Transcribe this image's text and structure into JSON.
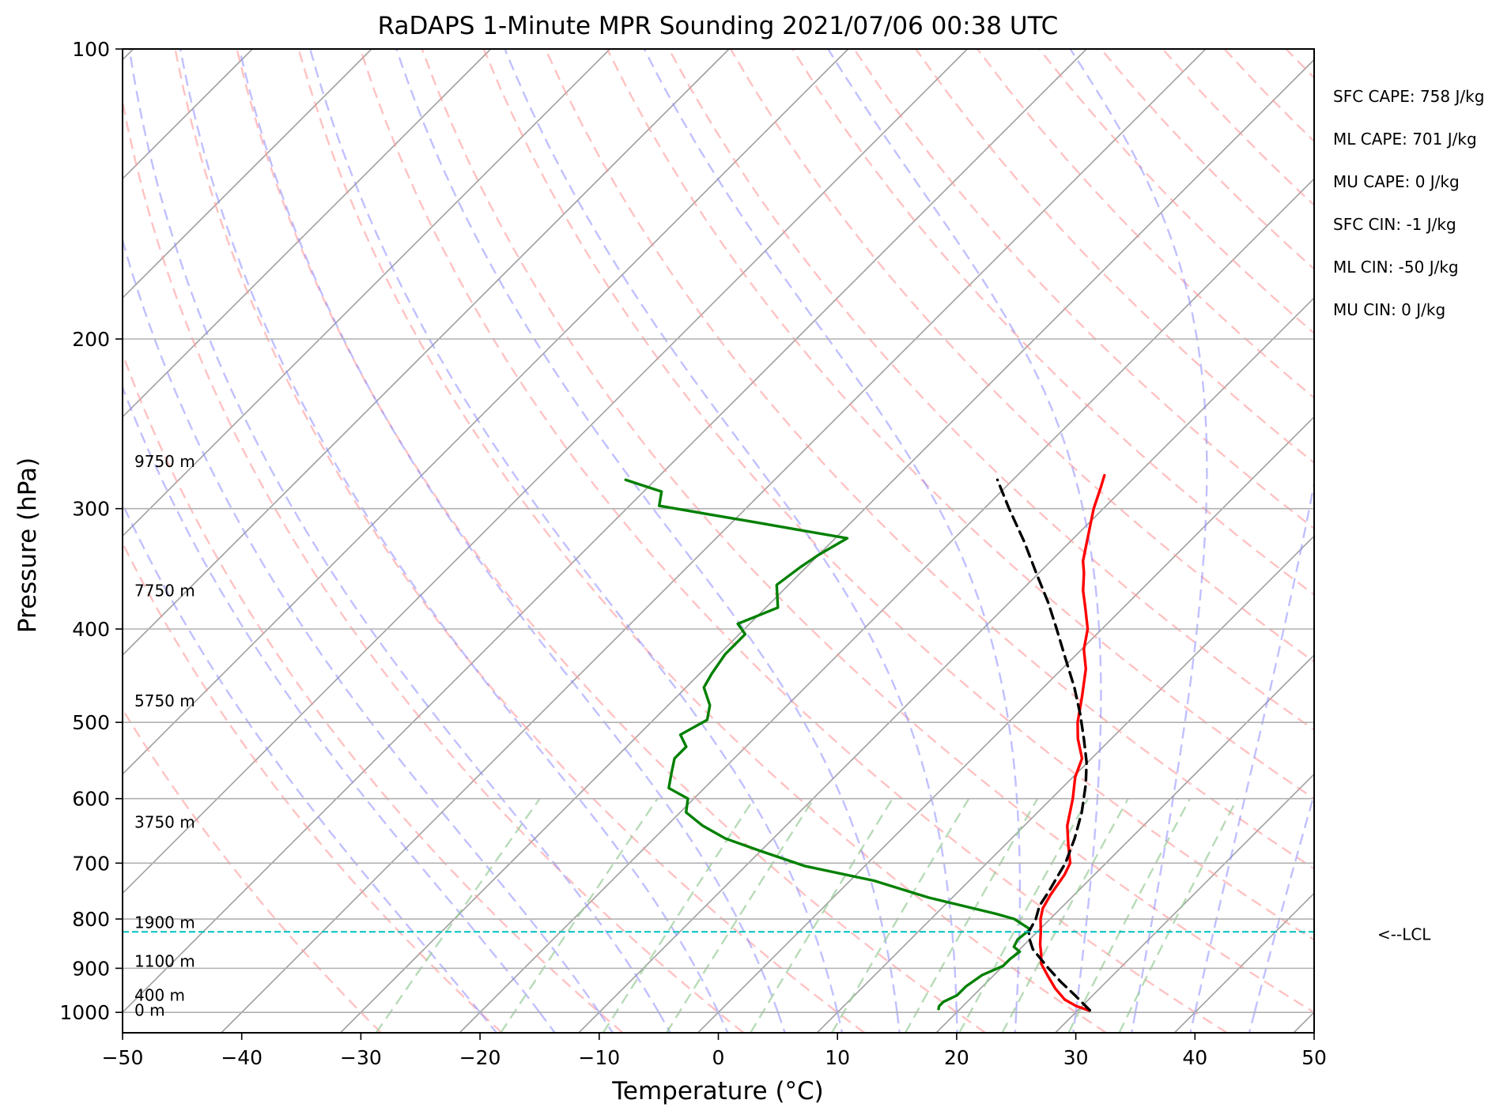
{
  "chart_data": {
    "type": "line",
    "subtype": "skew-t log-p",
    "title": "RaDAPS 1-Minute MPR Sounding 2021/07/06 00:38 UTC",
    "xlabel": "Temperature (°C)",
    "ylabel": "Pressure (hPa)",
    "xlim": [
      -50,
      50
    ],
    "ylim": [
      1050,
      100
    ],
    "y_scale": "log",
    "x_ticks": [
      -50,
      -40,
      -30,
      -20,
      -10,
      0,
      10,
      20,
      30,
      40,
      50
    ],
    "x_tick_labels": [
      "−50",
      "−40",
      "−30",
      "−20",
      "−10",
      "0",
      "10",
      "20",
      "30",
      "40",
      "50"
    ],
    "y_ticks": [
      1000,
      900,
      800,
      700,
      600,
      500,
      400,
      300,
      200,
      100
    ],
    "y_tick_labels": [
      "1000",
      "900",
      "800",
      "700",
      "600",
      "500",
      "400",
      "300",
      "200",
      "100"
    ],
    "grid": true,
    "series": [
      {
        "role": "temperature",
        "color": "#ff0000",
        "points": [
          [
            996,
            31.0
          ],
          [
            985,
            29.5
          ],
          [
            970,
            28.0
          ],
          [
            945,
            26.3
          ],
          [
            915,
            24.5
          ],
          [
            890,
            23.0
          ],
          [
            870,
            22.2
          ],
          [
            850,
            21.3
          ],
          [
            825,
            20.3
          ],
          [
            800,
            19.2
          ],
          [
            780,
            18.5
          ],
          [
            755,
            18.0
          ],
          [
            720,
            17.5
          ],
          [
            700,
            17.0
          ],
          [
            670,
            15.3
          ],
          [
            640,
            13.6
          ],
          [
            600,
            11.8
          ],
          [
            570,
            10.2
          ],
          [
            545,
            9.2
          ],
          [
            520,
            7.2
          ],
          [
            500,
            5.8
          ],
          [
            470,
            4.0
          ],
          [
            440,
            2.0
          ],
          [
            420,
            0.2
          ],
          [
            400,
            -1.2
          ],
          [
            380,
            -3.2
          ],
          [
            365,
            -4.8
          ],
          [
            350,
            -6.2
          ],
          [
            340,
            -7.3
          ],
          [
            320,
            -9.0
          ],
          [
            300,
            -10.8
          ],
          [
            285,
            -12.0
          ],
          [
            277,
            -12.7
          ]
        ]
      },
      {
        "role": "dewpoint",
        "color": "#008000",
        "points": [
          [
            992,
            18.2
          ],
          [
            985,
            18.0
          ],
          [
            975,
            18.0
          ],
          [
            960,
            18.6
          ],
          [
            940,
            18.6
          ],
          [
            915,
            19.0
          ],
          [
            895,
            20.0
          ],
          [
            880,
            20.0
          ],
          [
            865,
            20.2
          ],
          [
            855,
            19.3
          ],
          [
            840,
            19.0
          ],
          [
            820,
            19.2
          ],
          [
            800,
            17.0
          ],
          [
            790,
            15.0
          ],
          [
            760,
            8.0
          ],
          [
            730,
            2.0
          ],
          [
            705,
            -5.0
          ],
          [
            680,
            -10.0
          ],
          [
            660,
            -14.0
          ],
          [
            640,
            -17.0
          ],
          [
            620,
            -19.5
          ],
          [
            600,
            -20.5
          ],
          [
            585,
            -23.0
          ],
          [
            565,
            -24.0
          ],
          [
            545,
            -25.0
          ],
          [
            530,
            -25.0
          ],
          [
            515,
            -26.5
          ],
          [
            497,
            -25.5
          ],
          [
            480,
            -26.5
          ],
          [
            460,
            -28.5
          ],
          [
            445,
            -29.0
          ],
          [
            425,
            -29.5
          ],
          [
            405,
            -29.5
          ],
          [
            395,
            -31.0
          ],
          [
            380,
            -29.0
          ],
          [
            360,
            -31.0
          ],
          [
            345,
            -30.5
          ],
          [
            335,
            -30.0
          ],
          [
            322,
            -29.0
          ],
          [
            310,
            -38.0
          ],
          [
            298,
            -47.5
          ],
          [
            288,
            -48.5
          ],
          [
            280,
            -52.5
          ]
        ]
      },
      {
        "role": "parcel-profile",
        "color": "#000000",
        "points": [
          [
            995,
            31.0
          ],
          [
            960,
            28.5
          ],
          [
            930,
            26.2
          ],
          [
            900,
            24.0
          ],
          [
            875,
            22.2
          ],
          [
            860,
            21.1
          ],
          [
            840,
            20.0
          ],
          [
            825,
            19.3
          ],
          [
            800,
            18.8
          ],
          [
            775,
            18.0
          ],
          [
            750,
            17.6
          ],
          [
            720,
            17.0
          ],
          [
            700,
            16.6
          ],
          [
            660,
            15.3
          ],
          [
            620,
            13.7
          ],
          [
            580,
            11.7
          ],
          [
            550,
            9.9
          ],
          [
            520,
            7.7
          ],
          [
            490,
            5.3
          ],
          [
            460,
            2.6
          ],
          [
            430,
            -0.5
          ],
          [
            400,
            -3.8
          ],
          [
            375,
            -6.8
          ],
          [
            350,
            -10.2
          ],
          [
            325,
            -13.8
          ],
          [
            300,
            -17.9
          ],
          [
            280,
            -21.3
          ]
        ]
      }
    ],
    "lcl": {
      "pressure": 825,
      "label": "<--LCL",
      "color": "#00bfbf"
    },
    "height_labels": [
      {
        "pressure": 995,
        "label": "0 m"
      },
      {
        "pressure": 960,
        "label": "400 m"
      },
      {
        "pressure": 885,
        "label": "1100 m"
      },
      {
        "pressure": 807,
        "label": "1900 m"
      },
      {
        "pressure": 635,
        "label": "3750 m"
      },
      {
        "pressure": 475,
        "label": "5750 m"
      },
      {
        "pressure": 365,
        "label": "7750 m"
      },
      {
        "pressure": 268,
        "label": "9750 m"
      }
    ],
    "annotations": [
      "SFC CAPE: 758 J/kg",
      "ML CAPE: 701 J/kg",
      "MU CAPE: 0 J/kg",
      "SFC CIN: -1 J/kg",
      "ML CIN: -50 J/kg",
      "MU CIN: 0 J/kg"
    ],
    "reference_lines": {
      "isotherms_color": "#a0a0a0",
      "dry_adiabats_color": "#ff9999",
      "moist_adiabats_color": "#8c8cff",
      "mixing_ratio_color": "#99cc99"
    }
  }
}
